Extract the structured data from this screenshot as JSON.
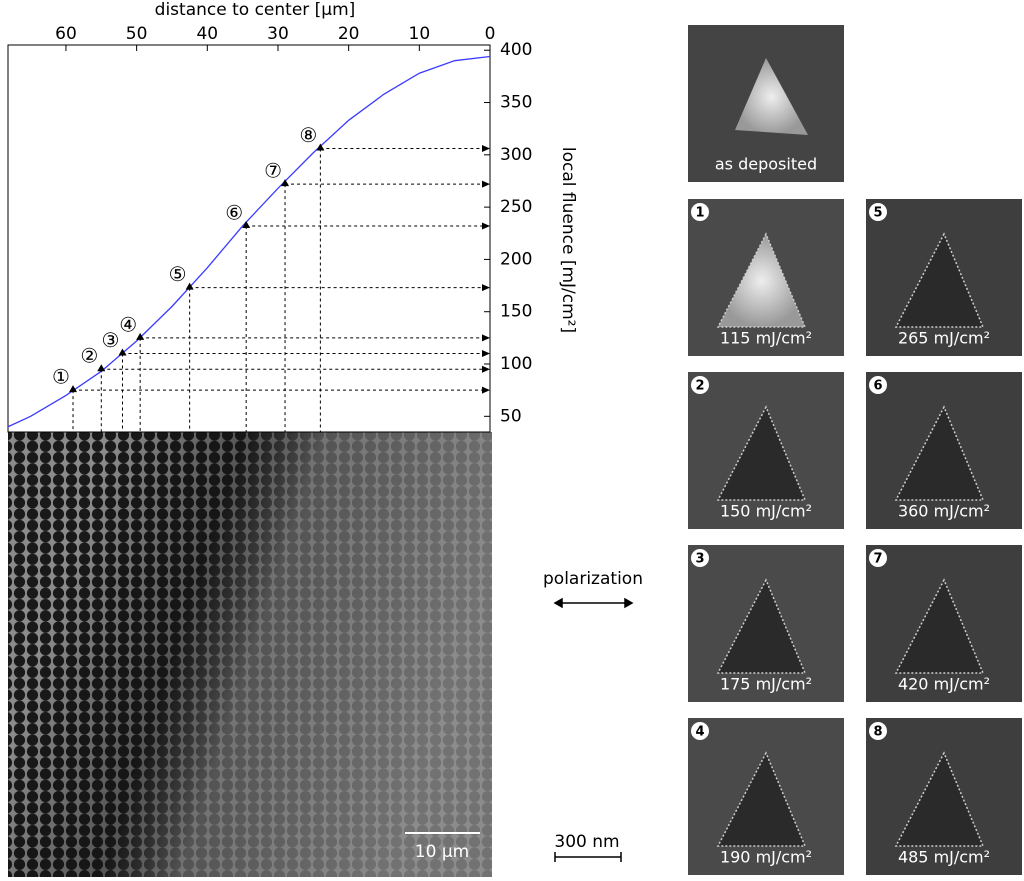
{
  "chart_data": {
    "type": "line",
    "x_label": "distance to center  [µm]",
    "y_label": "local fluence  [mJ/cm²]",
    "x": [
      68.2,
      65,
      60,
      55,
      50,
      45,
      40,
      35,
      30,
      25,
      20,
      15,
      10,
      5,
      0
    ],
    "values": [
      40,
      50,
      70,
      93,
      122,
      155,
      192,
      232,
      268,
      302,
      333,
      358,
      378,
      390,
      394
    ],
    "color": "#3b3bff",
    "xlim": [
      68.2,
      0
    ],
    "xticks": [
      60,
      50,
      40,
      30,
      20,
      10,
      0
    ],
    "ylim": [
      35,
      405
    ],
    "yticks": [
      50,
      100,
      150,
      200,
      250,
      300,
      350,
      400
    ],
    "markers": {
      "x": [
        59,
        55,
        52,
        49.5,
        42.5,
        34.5,
        29,
        24
      ],
      "y": [
        75,
        95,
        110,
        125,
        173,
        232,
        272,
        306
      ],
      "labels": [
        "①",
        "②",
        "③",
        "④",
        "⑤",
        "⑥",
        "⑦",
        "⑧"
      ]
    }
  },
  "sem": {
    "scale_bar": "10 µm"
  },
  "polarization": "polarization",
  "scale_bar": "300 nm",
  "deposited": "as deposited",
  "panels": [
    {
      "number": "1",
      "label": "115 mJ/cm²"
    },
    {
      "number": "2",
      "label": "150 mJ/cm²"
    },
    {
      "number": "3",
      "label": "175 mJ/cm²"
    },
    {
      "number": "4",
      "label": "190 mJ/cm²"
    },
    {
      "number": "5",
      "label": "265 mJ/cm²"
    },
    {
      "number": "6",
      "label": "360 mJ/cm²"
    },
    {
      "number": "7",
      "label": "420 mJ/cm²"
    },
    {
      "number": "8",
      "label": "485 mJ/cm²"
    }
  ]
}
